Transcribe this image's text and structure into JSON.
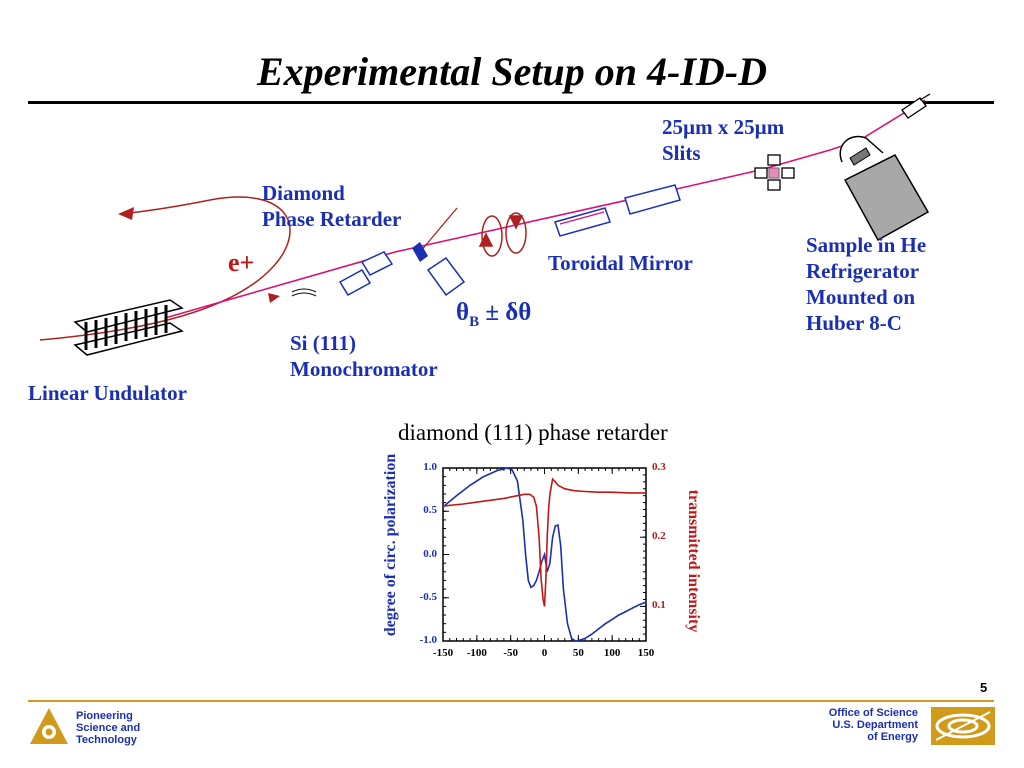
{
  "title": "Experimental Setup on 4-ID-D",
  "labels": {
    "slits_line1": "25µm x 25µm",
    "slits_line2": "Slits",
    "diamond_line1": "Diamond",
    "diamond_line2": "Phase Retarder",
    "positron": "e+",
    "toroidal": "Toroidal Mirror",
    "sample_line1": "Sample in He",
    "sample_line2": "Refrigerator",
    "sample_line3": "Mounted on",
    "sample_line4": "Huber 8-C",
    "theta_b": "θ",
    "theta_b_sub": "B",
    "theta_b_rest": " ± δθ",
    "si_line1": "Si (111)",
    "si_line2": "Monochromator",
    "undulator": "Linear Undulator"
  },
  "colors": {
    "label_blue": "#1a2fb4",
    "beam_magenta": "#d4147a",
    "positron_red": "#b02020",
    "rule_gold": "#d09a1a",
    "sample_gray": "#a8a8a8"
  },
  "chart_data": {
    "type": "line",
    "title": "diamond (111) phase retarder",
    "xlabel": "",
    "ylabel": "degree of circ. polarization",
    "y2label": "transmitted intensity",
    "xlim": [
      -150,
      150
    ],
    "ylim": [
      -1.0,
      1.0
    ],
    "y2lim": [
      0.05,
      0.3
    ],
    "x_ticks": [
      "-150",
      "-100",
      "-50",
      "0",
      "50",
      "100",
      "150"
    ],
    "y_ticks": [
      "1.0",
      "0.5",
      "0.0",
      "-0.5",
      "-1.0"
    ],
    "y2_ticks": [
      "0.3",
      "0.2",
      "0.1"
    ],
    "series": [
      {
        "color": "#1a2fb4",
        "axis": "left",
        "x": [
          -150,
          -130,
          -110,
          -90,
          -70,
          -55,
          -48,
          -40,
          -32,
          -28,
          -24,
          -20,
          -16,
          -12,
          -8,
          -4,
          0,
          4,
          8,
          12,
          16,
          20,
          24,
          28,
          34,
          40,
          46,
          52,
          60,
          70,
          80,
          90,
          100,
          110,
          120,
          130,
          140,
          150
        ],
        "y": [
          0.55,
          0.68,
          0.8,
          0.9,
          0.97,
          1.0,
          0.98,
          0.85,
          0.4,
          0.0,
          -0.3,
          -0.38,
          -0.36,
          -0.3,
          -0.2,
          -0.08,
          0.0,
          -0.2,
          -0.1,
          0.2,
          0.33,
          0.34,
          0.1,
          -0.4,
          -0.8,
          -0.97,
          -1.0,
          -0.99,
          -0.97,
          -0.92,
          -0.86,
          -0.8,
          -0.75,
          -0.7,
          -0.66,
          -0.62,
          -0.58,
          -0.55
        ]
      },
      {
        "color": "#c01818",
        "axis": "right",
        "x": [
          -150,
          -120,
          -90,
          -60,
          -40,
          -30,
          -22,
          -16,
          -12,
          -8,
          -5,
          -2,
          0,
          2,
          4,
          6,
          8,
          12,
          16,
          20,
          30,
          45,
          60,
          80,
          100,
          125,
          150
        ],
        "y": [
          0.245,
          0.248,
          0.252,
          0.256,
          0.26,
          0.262,
          0.262,
          0.258,
          0.245,
          0.2,
          0.14,
          0.11,
          0.1,
          0.14,
          0.2,
          0.24,
          0.262,
          0.284,
          0.28,
          0.275,
          0.27,
          0.267,
          0.266,
          0.265,
          0.265,
          0.264,
          0.264
        ]
      }
    ]
  },
  "page_number": "5",
  "footer": {
    "left_line1": "Pioneering",
    "left_line2": "Science and",
    "left_line3": "Technology",
    "right_line1": "Office of Science",
    "right_line2": "U.S. Department",
    "right_line3": "of Energy"
  }
}
